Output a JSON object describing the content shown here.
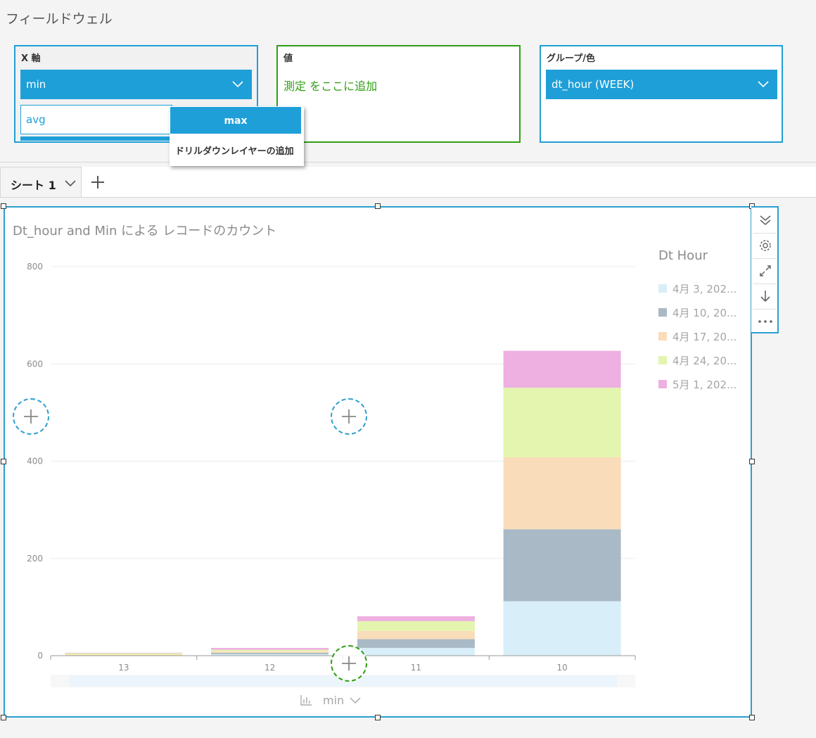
{
  "field_wells": {
    "section_title": "フィールドウェル",
    "x_axis": {
      "label": "X 軸",
      "field": "min",
      "secondary_field": "avg"
    },
    "value": {
      "label": "値",
      "placeholder": "測定 をここに追加"
    },
    "group": {
      "label": "グループ/色",
      "field": "dt_hour (WEEK)"
    }
  },
  "dropdown": {
    "selected": "max",
    "drill_down": "ドリルダウンレイヤーの追加"
  },
  "sheets": {
    "tabs": [
      {
        "label": "シート 1"
      }
    ]
  },
  "visual": {
    "title": "Dt_hour and Min による レコードのカウント",
    "legend_title": "Dt Hour",
    "axis_footer_label": "min"
  },
  "colors": {
    "accent": "#1f9fd8",
    "value_well": "#2f9e12",
    "series": [
      "#d8eef8",
      "#a9bac6",
      "#f9dcb9",
      "#e3f5ae",
      "#eeb0e0"
    ]
  },
  "chart_data": {
    "type": "bar",
    "stacked": true,
    "categories": [
      "13",
      "12",
      "11",
      "10"
    ],
    "series": [
      {
        "name": "4月 3, 202...",
        "values": [
          0,
          3,
          16,
          112
        ]
      },
      {
        "name": "4月 10, 20...",
        "values": [
          0,
          3,
          18,
          148
        ]
      },
      {
        "name": "4月 17, 20...",
        "values": [
          2,
          3,
          17,
          148
        ]
      },
      {
        "name": "4月 24, 20...",
        "values": [
          3,
          3,
          20,
          143
        ]
      },
      {
        "name": "5月 1, 202...",
        "values": [
          1,
          4,
          10,
          76
        ]
      }
    ],
    "y_ticks": [
      0,
      200,
      400,
      600,
      800
    ],
    "ylim": [
      0,
      800
    ],
    "grid": true,
    "legend_position": "right"
  }
}
